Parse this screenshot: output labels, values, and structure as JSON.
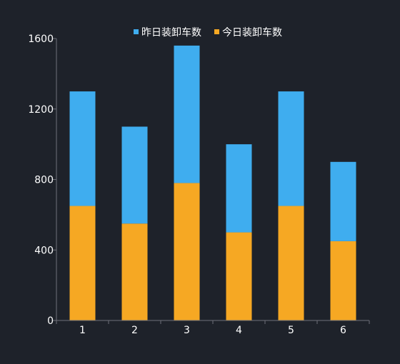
{
  "chart_data": {
    "type": "bar",
    "stacked": true,
    "categories": [
      "1",
      "2",
      "3",
      "4",
      "5",
      "6"
    ],
    "series": [
      {
        "name": "今日装卸车数",
        "color": "#f6a823",
        "values": [
          650,
          550,
          780,
          500,
          650,
          450
        ]
      },
      {
        "name": "昨日装卸车数",
        "color": "#3fadef",
        "values": [
          650,
          550,
          780,
          500,
          650,
          450
        ]
      }
    ],
    "legend_order": [
      "昨日装卸车数",
      "今日装卸车数"
    ],
    "legend_position": "top",
    "ylim": [
      0,
      1600
    ],
    "yticks": [
      "0",
      "400",
      "800",
      "1200",
      "1600"
    ],
    "grid": false,
    "title": "",
    "xlabel": "",
    "ylabel": ""
  }
}
